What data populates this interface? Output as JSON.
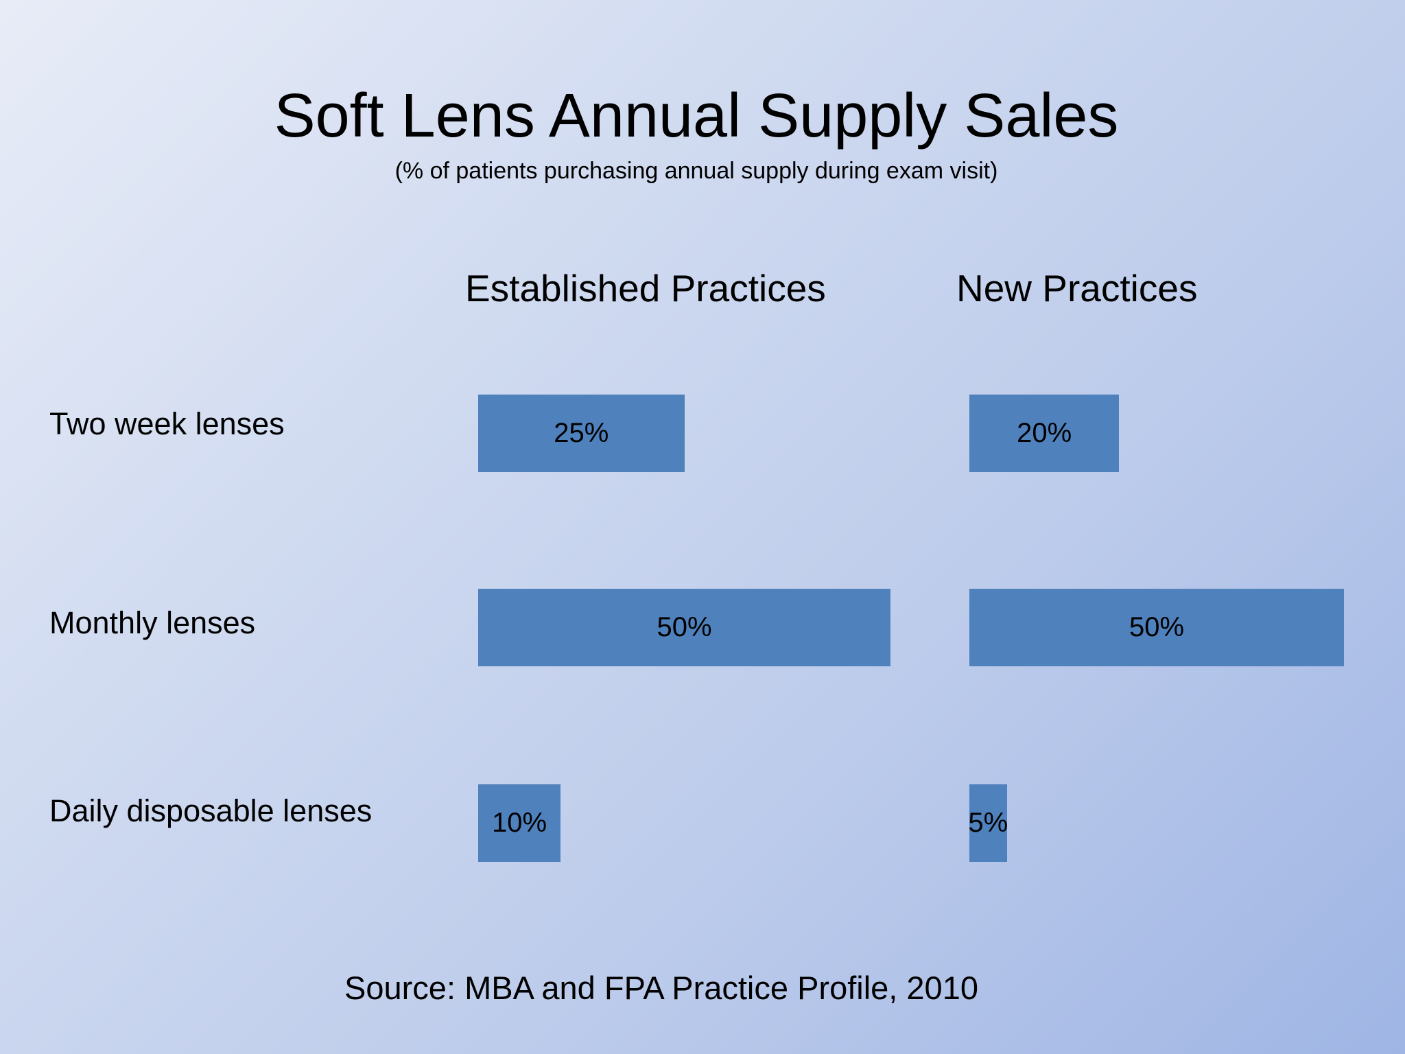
{
  "chart_data": {
    "type": "bar",
    "orientation": "horizontal",
    "title": "Soft Lens Annual Supply Sales",
    "subtitle": "(% of patients purchasing annual supply during exam visit)",
    "categories": [
      "Two week lenses",
      "Monthly lenses",
      "Daily disposable lenses"
    ],
    "series": [
      {
        "name": "Established Practices",
        "values": [
          25,
          50,
          10
        ],
        "labels": [
          "25%",
          "50%",
          "10%"
        ]
      },
      {
        "name": "New Practices",
        "values": [
          20,
          50,
          5
        ],
        "labels": [
          "20%",
          "50%",
          "5%"
        ]
      }
    ],
    "unit": "%",
    "bar_color": "#4f81bd",
    "source": "Source: MBA and FPA Practice Profile, 2010"
  }
}
